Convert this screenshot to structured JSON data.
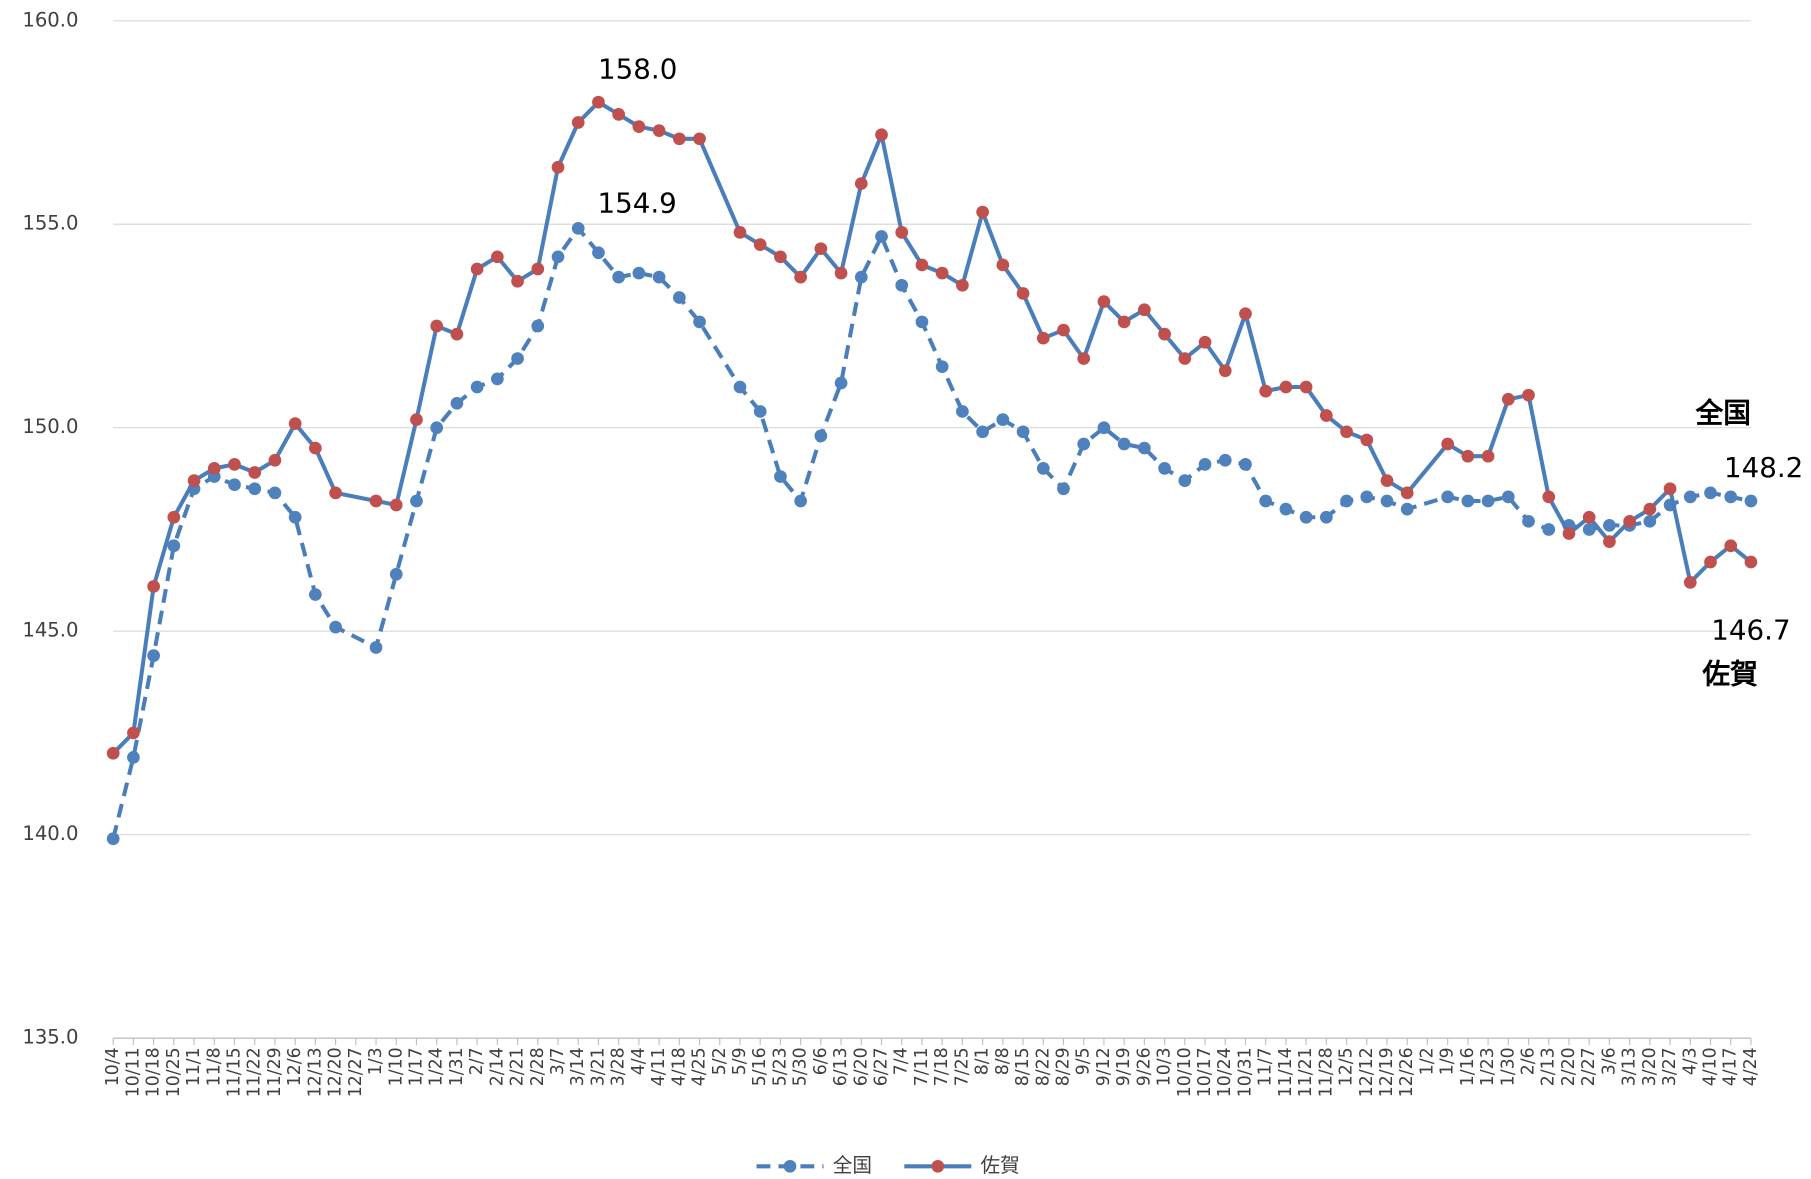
{
  "chart_data": {
    "type": "line",
    "categories": [
      "10/4",
      "10/11",
      "10/18",
      "10/25",
      "11/1",
      "11/8",
      "11/15",
      "11/22",
      "11/29",
      "12/6",
      "12/13",
      "12/20",
      "12/27",
      "1/3",
      "1/10",
      "1/17",
      "1/24",
      "1/31",
      "2/7",
      "2/14",
      "2/21",
      "2/28",
      "3/7",
      "3/14",
      "3/21",
      "3/28",
      "4/4",
      "4/11",
      "4/18",
      "4/25",
      "5/2",
      "5/9",
      "5/16",
      "5/23",
      "5/30",
      "6/6",
      "6/13",
      "6/20",
      "6/27",
      "7/4",
      "7/11",
      "7/18",
      "7/25",
      "8/1",
      "8/8",
      "8/15",
      "8/22",
      "8/29",
      "9/5",
      "9/12",
      "9/19",
      "9/26",
      "10/3",
      "10/10",
      "10/17",
      "10/24",
      "10/31",
      "11/7",
      "11/14",
      "11/21",
      "11/28",
      "12/5",
      "12/12",
      "12/19",
      "12/26",
      "1/2",
      "1/9",
      "1/16",
      "1/23",
      "1/30",
      "2/6",
      "2/13",
      "2/20",
      "2/27",
      "3/6",
      "3/13",
      "3/20",
      "3/27",
      "4/3",
      "4/10",
      "4/17",
      "4/24"
    ],
    "series": [
      {
        "name": "全国",
        "color": "#4a7ebb",
        "marker_color": "#4f81bd",
        "dash": true,
        "values": [
          139.9,
          141.9,
          144.4,
          147.1,
          148.5,
          148.8,
          148.6,
          148.5,
          148.4,
          147.8,
          145.9,
          145.1,
          null,
          144.6,
          146.4,
          148.2,
          150.0,
          150.6,
          151.0,
          151.2,
          151.7,
          152.5,
          154.2,
          154.9,
          154.3,
          153.7,
          153.8,
          153.7,
          153.2,
          152.6,
          null,
          151.0,
          150.4,
          148.8,
          148.2,
          149.8,
          151.1,
          153.7,
          154.7,
          153.5,
          152.6,
          151.5,
          150.4,
          149.9,
          150.2,
          149.9,
          149.0,
          148.5,
          149.6,
          150.0,
          149.6,
          149.5,
          149.0,
          148.7,
          149.1,
          149.2,
          149.1,
          148.2,
          148.0,
          147.8,
          147.8,
          148.2,
          148.3,
          148.2,
          148.0,
          null,
          148.3,
          148.2,
          148.2,
          148.3,
          147.7,
          147.5,
          147.6,
          147.5,
          147.6,
          147.6,
          147.7,
          148.1,
          148.3,
          148.4,
          148.3,
          148.2
        ],
        "value_labels": [
          null,
          null,
          null,
          null,
          null,
          null,
          null,
          null,
          null,
          null,
          null,
          null,
          null,
          null,
          null,
          null,
          null,
          null,
          null,
          null,
          null,
          null,
          null,
          "154.9",
          null,
          null,
          null,
          null,
          null,
          null,
          null,
          null,
          null,
          null,
          null,
          null,
          null,
          null,
          null,
          null,
          null,
          null,
          null,
          null,
          null,
          null,
          null,
          null,
          null,
          null,
          null,
          null,
          null,
          null,
          null,
          null,
          null,
          null,
          null,
          null,
          null,
          null,
          null,
          null,
          null,
          null,
          null,
          null,
          null,
          null,
          null,
          null,
          null,
          null,
          null,
          null,
          null,
          null,
          null,
          null,
          null,
          "148.2"
        ]
      },
      {
        "name": "佐賀",
        "color": "#4a7ebb",
        "marker_color": "#c0504d",
        "dash": false,
        "values": [
          142.0,
          142.5,
          146.1,
          147.8,
          148.7,
          149.0,
          149.1,
          148.9,
          149.2,
          150.1,
          149.5,
          148.4,
          null,
          148.2,
          148.1,
          150.2,
          152.5,
          152.3,
          153.9,
          154.2,
          153.6,
          153.9,
          156.4,
          157.5,
          158.0,
          157.7,
          157.4,
          157.3,
          157.1,
          157.1,
          null,
          154.8,
          154.5,
          154.2,
          153.7,
          154.4,
          153.8,
          156.0,
          157.2,
          154.8,
          154.0,
          153.8,
          153.5,
          155.3,
          154.0,
          153.3,
          152.2,
          152.4,
          151.7,
          153.1,
          152.6,
          152.9,
          152.3,
          151.7,
          152.1,
          151.4,
          152.8,
          150.9,
          151.0,
          151.0,
          150.3,
          149.9,
          149.7,
          148.7,
          148.4,
          null,
          149.6,
          149.3,
          149.3,
          150.7,
          150.8,
          148.3,
          147.4,
          147.8,
          147.2,
          147.7,
          148.0,
          148.5,
          146.2,
          146.7,
          147.1,
          146.7
        ],
        "value_labels": [
          null,
          null,
          null,
          null,
          null,
          null,
          null,
          null,
          null,
          null,
          null,
          null,
          null,
          null,
          null,
          null,
          null,
          null,
          null,
          null,
          null,
          null,
          null,
          null,
          "158.0",
          null,
          null,
          null,
          null,
          null,
          null,
          null,
          null,
          null,
          null,
          null,
          null,
          null,
          null,
          null,
          null,
          null,
          null,
          null,
          null,
          null,
          null,
          null,
          null,
          null,
          null,
          null,
          null,
          null,
          null,
          null,
          null,
          null,
          null,
          null,
          null,
          null,
          null,
          null,
          null,
          null,
          null,
          null,
          null,
          null,
          null,
          null,
          null,
          null,
          null,
          null,
          null,
          null,
          null,
          null,
          null,
          "146.7"
        ]
      }
    ],
    "ylim": [
      135,
      160
    ],
    "yticks": [
      {
        "value": 135,
        "label": "135.0"
      },
      {
        "value": 140,
        "label": "140.0"
      },
      {
        "value": 145,
        "label": "145.0"
      },
      {
        "value": 150,
        "label": "150.0"
      },
      {
        "value": 155,
        "label": "155.0"
      },
      {
        "value": 160,
        "label": "160.0"
      }
    ],
    "grid": true,
    "connect_gaps": true,
    "legend": "bottom"
  }
}
